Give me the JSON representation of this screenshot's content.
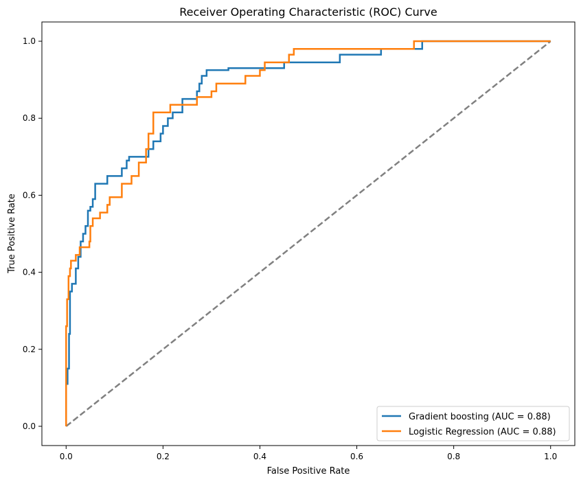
{
  "chart_data": {
    "type": "line",
    "title": "Receiver Operating Characteristic (ROC) Curve",
    "xlabel": "False Positive Rate",
    "ylabel": "True Positive Rate",
    "xlim": [
      -0.05,
      1.05
    ],
    "ylim": [
      -0.05,
      1.05
    ],
    "x_ticks": [
      "0.0",
      "0.2",
      "0.4",
      "0.6",
      "0.8",
      "1.0"
    ],
    "y_ticks": [
      "0.0",
      "0.2",
      "0.4",
      "0.6",
      "0.8",
      "1.0"
    ],
    "grid": false,
    "legend_position": "lower-right",
    "series": [
      {
        "name": "Gradient boosting (AUC = 0.88)",
        "color": "#1f77b4",
        "x": [
          0.0,
          0.0,
          0.003,
          0.003,
          0.006,
          0.006,
          0.008,
          0.008,
          0.012,
          0.012,
          0.02,
          0.02,
          0.025,
          0.025,
          0.03,
          0.03,
          0.035,
          0.035,
          0.04,
          0.04,
          0.045,
          0.045,
          0.05,
          0.05,
          0.055,
          0.055,
          0.06,
          0.06,
          0.085,
          0.085,
          0.115,
          0.115,
          0.125,
          0.125,
          0.13,
          0.13,
          0.17,
          0.17,
          0.18,
          0.18,
          0.195,
          0.195,
          0.2,
          0.2,
          0.21,
          0.21,
          0.22,
          0.22,
          0.24,
          0.24,
          0.27,
          0.27,
          0.275,
          0.275,
          0.28,
          0.28,
          0.29,
          0.29,
          0.335,
          0.335,
          0.45,
          0.45,
          0.565,
          0.565,
          0.65,
          0.65,
          0.735,
          0.735,
          1.0
        ],
        "y": [
          0.0,
          0.11,
          0.11,
          0.15,
          0.15,
          0.24,
          0.24,
          0.35,
          0.35,
          0.37,
          0.37,
          0.41,
          0.41,
          0.44,
          0.44,
          0.48,
          0.48,
          0.5,
          0.5,
          0.52,
          0.52,
          0.56,
          0.56,
          0.57,
          0.57,
          0.59,
          0.59,
          0.63,
          0.63,
          0.65,
          0.65,
          0.67,
          0.67,
          0.69,
          0.69,
          0.7,
          0.7,
          0.72,
          0.72,
          0.74,
          0.74,
          0.76,
          0.76,
          0.78,
          0.78,
          0.8,
          0.8,
          0.815,
          0.815,
          0.85,
          0.85,
          0.87,
          0.87,
          0.89,
          0.89,
          0.91,
          0.91,
          0.925,
          0.925,
          0.93,
          0.93,
          0.945,
          0.945,
          0.965,
          0.965,
          0.98,
          0.98,
          1.0,
          1.0
        ]
      },
      {
        "name": "Logistic Regression (AUC = 0.88)",
        "color": "#ff7f0e",
        "x": [
          0.0,
          0.0,
          0.002,
          0.002,
          0.005,
          0.005,
          0.008,
          0.008,
          0.01,
          0.01,
          0.02,
          0.02,
          0.028,
          0.028,
          0.048,
          0.048,
          0.05,
          0.05,
          0.055,
          0.055,
          0.07,
          0.07,
          0.085,
          0.085,
          0.09,
          0.09,
          0.115,
          0.115,
          0.135,
          0.135,
          0.15,
          0.15,
          0.165,
          0.165,
          0.17,
          0.17,
          0.18,
          0.18,
          0.19,
          0.19,
          0.215,
          0.215,
          0.27,
          0.27,
          0.3,
          0.3,
          0.31,
          0.31,
          0.37,
          0.37,
          0.4,
          0.4,
          0.41,
          0.41,
          0.46,
          0.46,
          0.47,
          0.47,
          0.718,
          0.718,
          1.0
        ],
        "y": [
          0.0,
          0.26,
          0.26,
          0.33,
          0.33,
          0.39,
          0.39,
          0.41,
          0.41,
          0.43,
          0.43,
          0.445,
          0.445,
          0.465,
          0.465,
          0.48,
          0.48,
          0.52,
          0.52,
          0.54,
          0.54,
          0.555,
          0.555,
          0.575,
          0.575,
          0.595,
          0.595,
          0.63,
          0.63,
          0.65,
          0.65,
          0.685,
          0.685,
          0.72,
          0.72,
          0.76,
          0.76,
          0.815,
          0.815,
          0.815,
          0.815,
          0.835,
          0.835,
          0.855,
          0.855,
          0.87,
          0.87,
          0.89,
          0.89,
          0.91,
          0.91,
          0.925,
          0.925,
          0.945,
          0.945,
          0.965,
          0.965,
          0.98,
          0.98,
          1.0,
          1.0
        ]
      },
      {
        "name": "",
        "color": "#808080",
        "dashed": true,
        "x": [
          0.0,
          1.0
        ],
        "y": [
          0.0,
          1.0
        ]
      }
    ]
  }
}
